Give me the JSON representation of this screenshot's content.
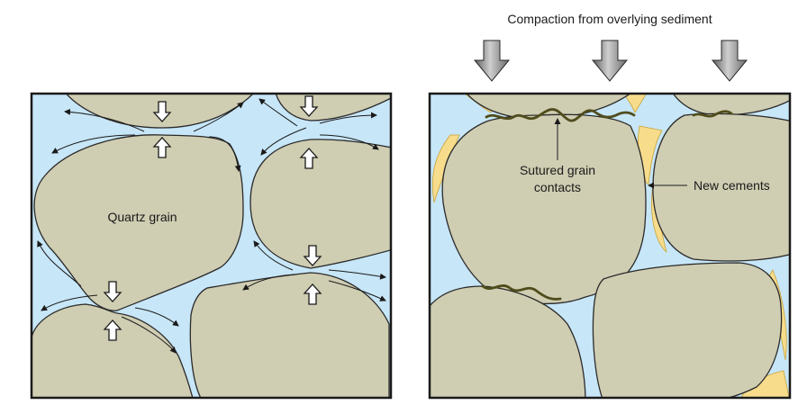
{
  "labels": {
    "compaction": "Compaction from overlying sediment",
    "quartz_grain": "Quartz grain",
    "sutured_line1": "Sutured grain",
    "sutured_line2": "contacts",
    "new_cements": "New cements"
  },
  "colors": {
    "grain_fill": "#cfcdb2",
    "pore_water": "#c7e6f7",
    "cement": "#f7dc8c",
    "suture_line": "#4f4c1c",
    "frame": "#1a1a1a",
    "compaction_arrow": "#8c8c8c",
    "stress_arrow": "#ffffff"
  },
  "icons": {
    "compaction": "down-arrow-icon",
    "stress": "hollow-arrow-icon"
  }
}
